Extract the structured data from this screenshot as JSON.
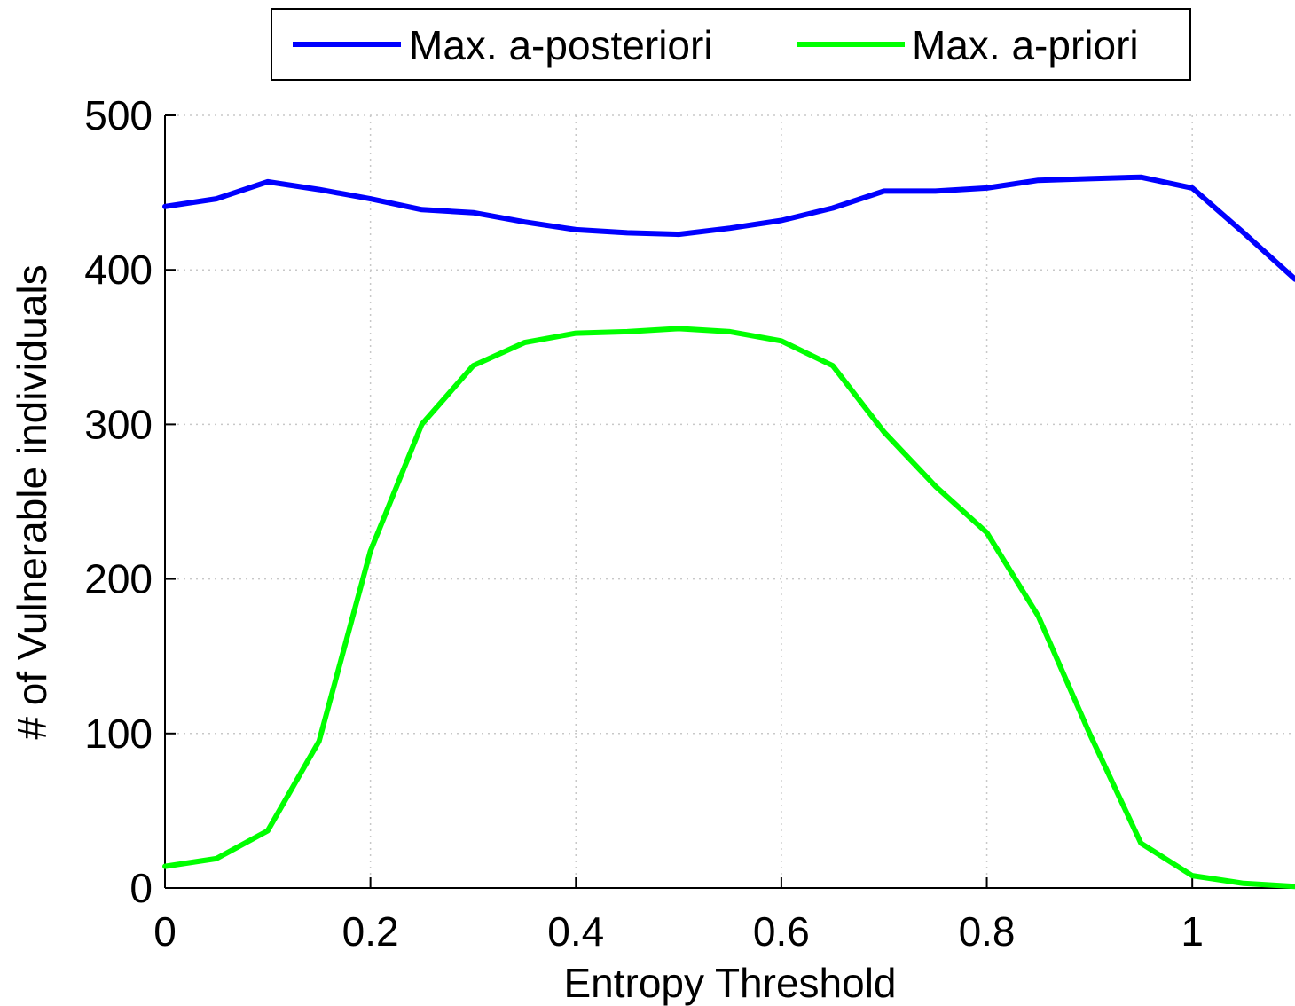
{
  "chart_data": {
    "type": "line",
    "title": "",
    "xlabel": "Entropy Threshold",
    "ylabel": "# of Vulnerable individuals",
    "xlim": [
      0,
      1.1
    ],
    "ylim": [
      0,
      500
    ],
    "xticks": [
      0,
      0.2,
      0.4,
      0.6,
      0.8,
      1
    ],
    "xtick_labels": [
      "0",
      "0.2",
      "0.4",
      "0.6",
      "0.8",
      "1"
    ],
    "yticks": [
      0,
      100,
      200,
      300,
      400,
      500
    ],
    "ytick_labels": [
      "0",
      "100",
      "200",
      "300",
      "400",
      "500"
    ],
    "grid": true,
    "grid_style": "dotted",
    "legend_position": "top",
    "legend_orientation": "horizontal",
    "x": [
      0,
      0.05,
      0.1,
      0.15,
      0.2,
      0.25,
      0.3,
      0.35,
      0.4,
      0.45,
      0.5,
      0.55,
      0.6,
      0.65,
      0.7,
      0.75,
      0.8,
      0.85,
      0.9,
      0.95,
      1.0,
      1.05,
      1.1
    ],
    "series": [
      {
        "name": "Max. a-posteriori",
        "color": "#0000ff",
        "values": [
          441,
          446,
          457,
          452,
          446,
          439,
          437,
          431,
          426,
          424,
          423,
          427,
          432,
          440,
          451,
          451,
          453,
          458,
          459,
          460,
          453,
          424,
          394
        ]
      },
      {
        "name": "Max. a-priori",
        "color": "#00ff00",
        "values": [
          14,
          19,
          37,
          95,
          218,
          300,
          338,
          353,
          359,
          360,
          362,
          360,
          354,
          338,
          295,
          260,
          230,
          176,
          100,
          29,
          8,
          3,
          1
        ]
      }
    ]
  }
}
